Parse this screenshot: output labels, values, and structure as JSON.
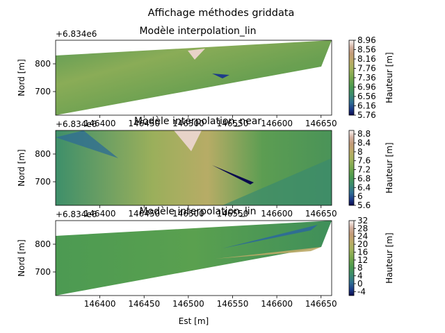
{
  "figure": {
    "suptitle": "Affichage méthodes griddata"
  },
  "chart_data": [
    {
      "type": "heatmap",
      "title": "Modèle interpolation_lin",
      "offset_label": "+6.834e6",
      "xlabel": "",
      "ylabel": "Nord [m]",
      "xlim": [
        146350,
        146662
      ],
      "ylim": [
        6834615,
        6834885
      ],
      "xticks": [
        146400,
        146450,
        146500,
        146550,
        146600,
        146650
      ],
      "yticks": [
        700,
        800
      ],
      "ytick_values": [
        6834700,
        6834800
      ],
      "domain": "trapezoid",
      "colorbar": {
        "label": "Hauteur [m]",
        "range": [
          5.76,
          8.96
        ],
        "ticks": [
          5.76,
          6.16,
          6.56,
          6.96,
          7.36,
          7.76,
          8.16,
          8.56,
          8.96
        ]
      },
      "colormap": "gist_earth"
    },
    {
      "type": "heatmap",
      "title": "Modèle interpolation_near",
      "offset_label": "+6.834e6",
      "xlabel": "",
      "ylabel": "Nord [m]",
      "xlim": [
        146350,
        146662
      ],
      "ylim": [
        6834615,
        6834885
      ],
      "xticks": [
        146400,
        146450,
        146500,
        146550,
        146600,
        146650
      ],
      "yticks": [
        700,
        800
      ],
      "ytick_values": [
        6834700,
        6834800
      ],
      "domain": "full",
      "colorbar": {
        "label": "Hauteur [m]",
        "range": [
          5.6,
          8.96
        ],
        "ticks": [
          5.6,
          6.0,
          6.4,
          6.8,
          7.2,
          7.6,
          8.0,
          8.4,
          8.8
        ]
      },
      "colormap": "gist_earth"
    },
    {
      "type": "heatmap",
      "title": "Modèle interpolation_lin",
      "offset_label": "+6.834e6",
      "xlabel": "Est [m]",
      "ylabel": "Nord [m]",
      "xlim": [
        146350,
        146662
      ],
      "ylim": [
        6834615,
        6834885
      ],
      "xticks": [
        146400,
        146450,
        146500,
        146550,
        146600,
        146650
      ],
      "yticks": [
        700,
        800
      ],
      "ytick_values": [
        6834700,
        6834800
      ],
      "domain": "trapezoid",
      "colorbar": {
        "label": "Hauteur [m]",
        "range": [
          -6,
          32
        ],
        "ticks": [
          -4,
          0,
          4,
          8,
          12,
          16,
          20,
          24,
          28,
          32
        ]
      },
      "colormap": "gist_earth"
    }
  ]
}
